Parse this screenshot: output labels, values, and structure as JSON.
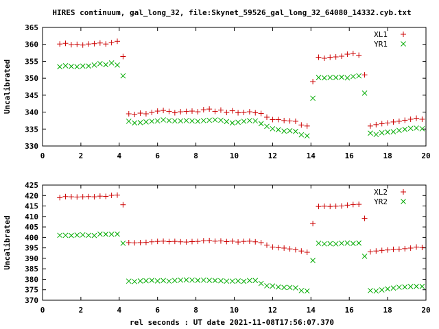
{
  "figure": {
    "title": "HIRES continuum, gal_long_32, file:Skynet_59526_gal_long_32_64080_14332.cyb.txt",
    "xlabel": "rel seconds : UT date 2021-11-08T17:56:07.370"
  },
  "colors": {
    "red": "#cc0000",
    "green": "#00aa00",
    "axis": "#000000"
  },
  "chart_data": [
    {
      "type": "scatter",
      "panel": "top",
      "ylabel": "Uncalibrated",
      "xlim": [
        0,
        20
      ],
      "ylim": [
        330,
        365
      ],
      "xticks": [
        0,
        2,
        4,
        6,
        8,
        10,
        12,
        14,
        16,
        18,
        20
      ],
      "yticks": [
        330,
        335,
        340,
        345,
        350,
        355,
        360,
        365
      ],
      "legend_position": "top-right",
      "series": [
        {
          "name": "XL1",
          "marker": "plus",
          "color": "#cc0000",
          "x": [
            0.9,
            1.2,
            1.5,
            1.8,
            2.1,
            2.4,
            2.7,
            3.0,
            3.3,
            3.6,
            3.9,
            4.2,
            4.5,
            4.8,
            5.1,
            5.4,
            5.7,
            6.0,
            6.3,
            6.6,
            6.9,
            7.2,
            7.5,
            7.8,
            8.1,
            8.4,
            8.7,
            9.0,
            9.3,
            9.6,
            9.9,
            10.2,
            10.5,
            10.8,
            11.1,
            11.4,
            11.7,
            12.0,
            12.3,
            12.6,
            12.9,
            13.2,
            13.5,
            13.8,
            14.1,
            14.4,
            14.7,
            15.0,
            15.3,
            15.6,
            15.9,
            16.2,
            16.5,
            16.8,
            17.1,
            17.4,
            17.7,
            18.0,
            18.3,
            18.6,
            18.9,
            19.2,
            19.5,
            19.8
          ],
          "y": [
            360.1,
            360.3,
            359.9,
            360.0,
            359.8,
            360.1,
            360.2,
            360.4,
            360.1,
            360.5,
            360.9,
            356.4,
            339.5,
            339.3,
            339.7,
            339.5,
            339.9,
            340.3,
            340.5,
            340.2,
            339.8,
            340.1,
            340.2,
            340.3,
            340.1,
            340.7,
            340.9,
            340.2,
            340.6,
            339.9,
            340.4,
            339.8,
            339.9,
            340.1,
            339.8,
            339.6,
            338.5,
            337.8,
            337.8,
            337.5,
            337.4,
            337.3,
            336.2,
            335.9,
            349.0,
            356.2,
            355.9,
            356.2,
            356.3,
            356.5,
            357.1,
            357.3,
            356.8,
            351.0,
            335.9,
            336.3,
            336.6,
            336.8,
            337.1,
            337.3,
            337.6,
            337.9,
            338.2,
            337.9
          ]
        },
        {
          "name": "YR1",
          "marker": "cross",
          "color": "#00aa00",
          "x": [
            0.9,
            1.2,
            1.5,
            1.8,
            2.1,
            2.4,
            2.7,
            3.0,
            3.3,
            3.6,
            3.9,
            4.2,
            4.5,
            4.8,
            5.1,
            5.4,
            5.7,
            6.0,
            6.3,
            6.6,
            6.9,
            7.2,
            7.5,
            7.8,
            8.1,
            8.4,
            8.7,
            9.0,
            9.3,
            9.6,
            9.9,
            10.2,
            10.5,
            10.8,
            11.1,
            11.4,
            11.7,
            12.0,
            12.3,
            12.6,
            12.9,
            13.2,
            13.5,
            13.8,
            14.1,
            14.4,
            14.7,
            15.0,
            15.3,
            15.6,
            15.9,
            16.2,
            16.5,
            16.8,
            17.1,
            17.4,
            17.7,
            18.0,
            18.3,
            18.6,
            18.9,
            19.2,
            19.5,
            19.8
          ],
          "y": [
            353.4,
            353.7,
            353.5,
            353.4,
            353.6,
            353.6,
            353.9,
            354.3,
            354.0,
            354.5,
            353.9,
            350.7,
            337.3,
            336.8,
            336.9,
            337.1,
            337.3,
            337.4,
            337.7,
            337.5,
            337.4,
            337.4,
            337.5,
            337.4,
            337.3,
            337.5,
            337.6,
            337.7,
            337.6,
            337.2,
            336.8,
            337.0,
            337.3,
            337.5,
            337.4,
            336.6,
            335.8,
            335.1,
            334.8,
            334.4,
            334.5,
            334.3,
            333.3,
            333.0,
            344.1,
            350.2,
            350.1,
            350.2,
            350.2,
            350.3,
            350.1,
            350.5,
            350.7,
            345.6,
            333.8,
            333.4,
            333.9,
            334.1,
            334.2,
            334.6,
            334.9,
            335.2,
            335.3,
            335.1
          ]
        }
      ]
    },
    {
      "type": "scatter",
      "panel": "bottom",
      "ylabel": "Uncalibrated",
      "xlim": [
        0,
        20
      ],
      "ylim": [
        370,
        425
      ],
      "xticks": [
        0,
        2,
        4,
        6,
        8,
        10,
        12,
        14,
        16,
        18,
        20
      ],
      "yticks": [
        370,
        375,
        380,
        385,
        390,
        395,
        400,
        405,
        410,
        415,
        420,
        425
      ],
      "legend_position": "top-right",
      "series": [
        {
          "name": "XL2",
          "marker": "plus",
          "color": "#cc0000",
          "x": [
            0.9,
            1.2,
            1.5,
            1.8,
            2.1,
            2.4,
            2.7,
            3.0,
            3.3,
            3.6,
            3.9,
            4.2,
            4.5,
            4.8,
            5.1,
            5.4,
            5.7,
            6.0,
            6.3,
            6.6,
            6.9,
            7.2,
            7.5,
            7.8,
            8.1,
            8.4,
            8.7,
            9.0,
            9.3,
            9.6,
            9.9,
            10.2,
            10.5,
            10.8,
            11.1,
            11.4,
            11.7,
            12.0,
            12.3,
            12.6,
            12.9,
            13.2,
            13.5,
            13.8,
            14.1,
            14.4,
            14.7,
            15.0,
            15.3,
            15.6,
            15.9,
            16.2,
            16.5,
            16.8,
            17.1,
            17.4,
            17.7,
            18.0,
            18.3,
            18.6,
            18.9,
            19.2,
            19.5,
            19.8
          ],
          "y": [
            419.0,
            419.5,
            419.4,
            419.3,
            419.4,
            419.5,
            419.4,
            419.7,
            419.6,
            420.1,
            420.2,
            415.6,
            397.5,
            397.4,
            397.5,
            397.6,
            397.9,
            398.1,
            398.2,
            398.0,
            398.1,
            397.9,
            397.8,
            398.0,
            398.1,
            398.4,
            398.5,
            398.2,
            398.3,
            398.0,
            398.2,
            397.8,
            398.1,
            398.2,
            397.9,
            397.5,
            396.3,
            395.4,
            395.1,
            394.9,
            394.5,
            394.1,
            393.5,
            392.9,
            406.6,
            414.8,
            414.9,
            414.8,
            414.9,
            415.0,
            415.4,
            415.7,
            415.8,
            409.1,
            393.1,
            393.5,
            393.8,
            394.0,
            394.3,
            394.4,
            394.6,
            394.9,
            395.4,
            395.2
          ]
        },
        {
          "name": "YR2",
          "marker": "cross",
          "color": "#00aa00",
          "x": [
            0.9,
            1.2,
            1.5,
            1.8,
            2.1,
            2.4,
            2.7,
            3.0,
            3.3,
            3.6,
            3.9,
            4.2,
            4.5,
            4.8,
            5.1,
            5.4,
            5.7,
            6.0,
            6.3,
            6.6,
            6.9,
            7.2,
            7.5,
            7.8,
            8.1,
            8.4,
            8.7,
            9.0,
            9.3,
            9.6,
            9.9,
            10.2,
            10.5,
            10.8,
            11.1,
            11.4,
            11.7,
            12.0,
            12.3,
            12.6,
            12.9,
            13.2,
            13.5,
            13.8,
            14.1,
            14.4,
            14.7,
            15.0,
            15.3,
            15.6,
            15.9,
            16.2,
            16.5,
            16.8,
            17.1,
            17.4,
            17.7,
            18.0,
            18.3,
            18.6,
            18.9,
            19.2,
            19.5,
            19.8
          ],
          "y": [
            401.0,
            401.0,
            400.9,
            401.1,
            401.2,
            401.0,
            400.9,
            401.6,
            401.5,
            401.5,
            401.6,
            397.2,
            379.1,
            378.9,
            379.2,
            379.3,
            379.5,
            379.2,
            379.4,
            379.1,
            379.4,
            379.6,
            379.7,
            379.6,
            379.5,
            379.6,
            379.5,
            379.4,
            379.3,
            379.1,
            379.1,
            379.2,
            379.0,
            379.4,
            379.4,
            378.0,
            376.9,
            376.8,
            376.3,
            376.1,
            376.1,
            375.9,
            374.6,
            374.4,
            389.0,
            397.2,
            396.9,
            397.0,
            396.9,
            397.2,
            397.3,
            397.1,
            397.3,
            391.0,
            374.6,
            374.4,
            374.9,
            375.4,
            375.8,
            376.2,
            376.3,
            376.5,
            376.6,
            376.6
          ]
        }
      ]
    }
  ]
}
